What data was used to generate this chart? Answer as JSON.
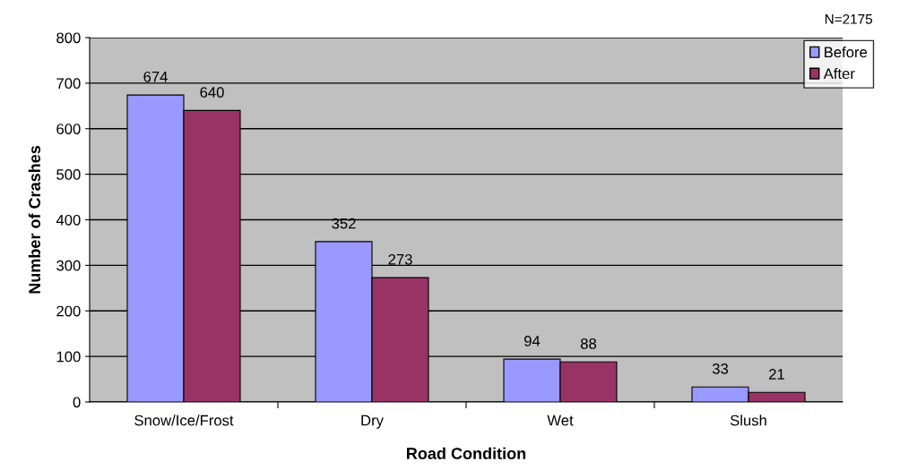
{
  "chart_data": {
    "type": "bar",
    "xlabel": "Road Condition",
    "ylabel": "Number of Crashes",
    "categories": [
      "Snow/Ice/Frost",
      "Dry",
      "Wet",
      "Slush"
    ],
    "series": [
      {
        "name": "Before",
        "color": "#9999ff",
        "values": [
          674,
          352,
          94,
          33
        ]
      },
      {
        "name": "After",
        "color": "#993366",
        "values": [
          640,
          273,
          88,
          21
        ]
      }
    ],
    "ylim": [
      0,
      800
    ],
    "yticks": [
      0,
      100,
      200,
      300,
      400,
      500,
      600,
      700,
      800
    ],
    "grid": "y",
    "legend": "top right",
    "data_labels": true,
    "annotations": [
      "N=2175"
    ]
  }
}
